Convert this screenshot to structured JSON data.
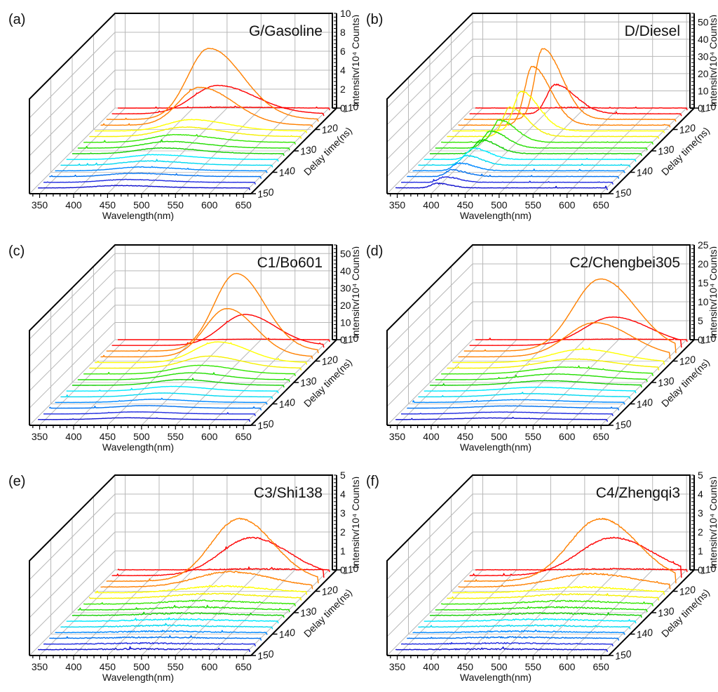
{
  "figure": {
    "description": "Time-resolved fluorescence spectra waterfall plots for six oil samples",
    "trace_colors": [
      "#ff0000",
      "#ff0000",
      "#ff8000",
      "#ff8000",
      "#ffff00",
      "#f5f000",
      "#33e600",
      "#22dd00",
      "#11cc00",
      "#00eaff",
      "#00d8f0",
      "#0088ff",
      "#0070ee",
      "#1f2ae0",
      "#1010cc"
    ],
    "grid_color": "#b8b8b8",
    "axis_color": "#000000"
  },
  "chart_data": [
    {
      "type": "line",
      "panel_label": "(a)",
      "title": "G/Gasoline",
      "xlabel": "Wavelength(nm)",
      "ylabel_depth": "Delay time(ns)",
      "zlabel": "Intensity(10⁴ Counts)",
      "x_ticks": [
        "350",
        "400",
        "450",
        "500",
        "550",
        "600",
        "650"
      ],
      "xlim": [
        335,
        655
      ],
      "depth_ticks": [
        "110",
        "120",
        "130",
        "140",
        "150"
      ],
      "depth_range": [
        110,
        150
      ],
      "z_ticks": [
        "0",
        "2",
        "4",
        "6",
        "8",
        "10"
      ],
      "zlim": [
        0,
        10
      ],
      "noise": 0.05,
      "series": [
        {
          "delay_ns": 110.0,
          "peak_nm": 500,
          "peak_value": 0.1,
          "width_nm": 60,
          "skew": 1.4
        },
        {
          "delay_ns": 112.7,
          "peak_nm": 495,
          "peak_value": 3.0,
          "width_nm": 55,
          "skew": 1.5
        },
        {
          "delay_ns": 115.3,
          "peak_nm": 490,
          "peak_value": 7.5,
          "width_nm": 50,
          "skew": 1.6
        },
        {
          "delay_ns": 118.0,
          "peak_nm": 485,
          "peak_value": 4.0,
          "width_nm": 50,
          "skew": 1.6
        },
        {
          "delay_ns": 120.7,
          "peak_nm": 480,
          "peak_value": 1.2,
          "width_nm": 55,
          "skew": 1.6
        },
        {
          "delay_ns": 123.3,
          "peak_nm": 478,
          "peak_value": 1.0,
          "width_nm": 55,
          "skew": 1.6
        },
        {
          "delay_ns": 126.0,
          "peak_nm": 475,
          "peak_value": 0.8,
          "width_nm": 55,
          "skew": 1.6
        },
        {
          "delay_ns": 128.7,
          "peak_nm": 472,
          "peak_value": 0.7,
          "width_nm": 55,
          "skew": 1.6
        },
        {
          "delay_ns": 131.3,
          "peak_nm": 470,
          "peak_value": 0.6,
          "width_nm": 55,
          "skew": 1.6
        },
        {
          "delay_ns": 134.0,
          "peak_nm": 468,
          "peak_value": 0.5,
          "width_nm": 55,
          "skew": 1.6
        },
        {
          "delay_ns": 136.7,
          "peak_nm": 466,
          "peak_value": 0.45,
          "width_nm": 55,
          "skew": 1.6
        },
        {
          "delay_ns": 139.3,
          "peak_nm": 464,
          "peak_value": 0.4,
          "width_nm": 55,
          "skew": 1.6
        },
        {
          "delay_ns": 142.0,
          "peak_nm": 462,
          "peak_value": 0.35,
          "width_nm": 55,
          "skew": 1.6
        },
        {
          "delay_ns": 144.7,
          "peak_nm": 460,
          "peak_value": 0.3,
          "width_nm": 55,
          "skew": 1.6
        },
        {
          "delay_ns": 147.3,
          "peak_nm": 458,
          "peak_value": 0.25,
          "width_nm": 55,
          "skew": 1.6
        }
      ]
    },
    {
      "type": "line",
      "panel_label": "(b)",
      "title": "D/Diesel",
      "xlabel": "Wavelength(nm)",
      "ylabel_depth": "Delay time(ns)",
      "zlabel": "Intensity(10⁴ Counts)",
      "x_ticks": [
        "350",
        "400",
        "450",
        "500",
        "550",
        "600",
        "650"
      ],
      "xlim": [
        335,
        655
      ],
      "depth_ticks": [
        "110",
        "120",
        "130",
        "140",
        "150"
      ],
      "depth_range": [
        110,
        150
      ],
      "z_ticks": [
        "0",
        "10",
        "20",
        "30",
        "40",
        "50"
      ],
      "zlim": [
        0,
        55
      ],
      "noise": 0.12,
      "series": [
        {
          "delay_ns": 110.0,
          "peak_nm": 470,
          "peak_value": 0.3,
          "width_nm": 30,
          "skew": 2.2
        },
        {
          "delay_ns": 112.7,
          "peak_nm": 465,
          "peak_value": 17,
          "width_nm": 30,
          "skew": 2.4
        },
        {
          "delay_ns": 115.3,
          "peak_nm": 455,
          "peak_value": 41,
          "width_nm": 28,
          "skew": 2.4
        },
        {
          "delay_ns": 118.0,
          "peak_nm": 448,
          "peak_value": 34,
          "width_nm": 27,
          "skew": 2.4
        },
        {
          "delay_ns": 120.7,
          "peak_nm": 440,
          "peak_value": 23,
          "width_nm": 26,
          "skew": 2.4
        },
        {
          "delay_ns": 123.3,
          "peak_nm": 432,
          "peak_value": 17,
          "width_nm": 25,
          "skew": 2.4
        },
        {
          "delay_ns": 126.0,
          "peak_nm": 425,
          "peak_value": 13,
          "width_nm": 24,
          "skew": 2.4
        },
        {
          "delay_ns": 128.7,
          "peak_nm": 420,
          "peak_value": 10,
          "width_nm": 24,
          "skew": 2.4
        },
        {
          "delay_ns": 131.3,
          "peak_nm": 415,
          "peak_value": 8,
          "width_nm": 23,
          "skew": 2.4
        },
        {
          "delay_ns": 134.0,
          "peak_nm": 412,
          "peak_value": 6.5,
          "width_nm": 23,
          "skew": 2.4
        },
        {
          "delay_ns": 136.7,
          "peak_nm": 410,
          "peak_value": 5.5,
          "width_nm": 22,
          "skew": 2.4
        },
        {
          "delay_ns": 139.3,
          "peak_nm": 407,
          "peak_value": 4.5,
          "width_nm": 22,
          "skew": 2.4
        },
        {
          "delay_ns": 142.0,
          "peak_nm": 405,
          "peak_value": 3.8,
          "width_nm": 22,
          "skew": 2.4
        },
        {
          "delay_ns": 144.7,
          "peak_nm": 403,
          "peak_value": 3.2,
          "width_nm": 21,
          "skew": 2.4
        },
        {
          "delay_ns": 147.3,
          "peak_nm": 400,
          "peak_value": 2.6,
          "width_nm": 21,
          "skew": 2.4
        }
      ]
    },
    {
      "type": "line",
      "panel_label": "(c)",
      "title": "C1/Bo601",
      "xlabel": "Wavelength(nm)",
      "ylabel_depth": "Delay time(ns)",
      "zlabel": "Intensity(10⁴ Counts)",
      "x_ticks": [
        "350",
        "400",
        "450",
        "500",
        "550",
        "600",
        "650"
      ],
      "xlim": [
        335,
        655
      ],
      "depth_ticks": [
        "110",
        "120",
        "130",
        "140",
        "150"
      ],
      "depth_range": [
        110,
        150
      ],
      "z_ticks": [
        "0",
        "10",
        "20",
        "30",
        "40",
        "50"
      ],
      "zlim": [
        0,
        55
      ],
      "noise": 0.02,
      "series": [
        {
          "delay_ns": 110.0,
          "peak_nm": 535,
          "peak_value": 0.3,
          "width_nm": 45,
          "skew": 1.3
        },
        {
          "delay_ns": 112.7,
          "peak_nm": 535,
          "peak_value": 18,
          "width_nm": 45,
          "skew": 1.3
        },
        {
          "delay_ns": 115.3,
          "peak_nm": 530,
          "peak_value": 45,
          "width_nm": 42,
          "skew": 1.3
        },
        {
          "delay_ns": 118.0,
          "peak_nm": 525,
          "peak_value": 28,
          "width_nm": 42,
          "skew": 1.3
        },
        {
          "delay_ns": 120.7,
          "peak_nm": 520,
          "peak_value": 12,
          "width_nm": 45,
          "skew": 1.3
        },
        {
          "delay_ns": 123.3,
          "peak_nm": 515,
          "peak_value": 7,
          "width_nm": 47,
          "skew": 1.3
        },
        {
          "delay_ns": 126.0,
          "peak_nm": 510,
          "peak_value": 5,
          "width_nm": 48,
          "skew": 1.3
        },
        {
          "delay_ns": 128.7,
          "peak_nm": 505,
          "peak_value": 4,
          "width_nm": 48,
          "skew": 1.3
        },
        {
          "delay_ns": 131.3,
          "peak_nm": 500,
          "peak_value": 3.3,
          "width_nm": 48,
          "skew": 1.3
        },
        {
          "delay_ns": 134.0,
          "peak_nm": 495,
          "peak_value": 2.7,
          "width_nm": 48,
          "skew": 1.3
        },
        {
          "delay_ns": 136.7,
          "peak_nm": 490,
          "peak_value": 2.2,
          "width_nm": 48,
          "skew": 1.3
        },
        {
          "delay_ns": 139.3,
          "peak_nm": 485,
          "peak_value": 1.8,
          "width_nm": 48,
          "skew": 1.3
        },
        {
          "delay_ns": 142.0,
          "peak_nm": 480,
          "peak_value": 1.5,
          "width_nm": 48,
          "skew": 1.3
        },
        {
          "delay_ns": 144.7,
          "peak_nm": 475,
          "peak_value": 1.2,
          "width_nm": 48,
          "skew": 1.3
        },
        {
          "delay_ns": 147.3,
          "peak_nm": 470,
          "peak_value": 1.0,
          "width_nm": 48,
          "skew": 1.3
        }
      ]
    },
    {
      "type": "line",
      "panel_label": "(d)",
      "title": "C2/Chengbei305",
      "xlabel": "Wavelength(nm)",
      "ylabel_depth": "Delay time(ns)",
      "zlabel": "Intensity(10⁴ Counts)",
      "x_ticks": [
        "350",
        "400",
        "450",
        "500",
        "550",
        "600",
        "650"
      ],
      "xlim": [
        335,
        655
      ],
      "depth_ticks": [
        "110",
        "120",
        "130",
        "140",
        "150"
      ],
      "depth_range": [
        110,
        150
      ],
      "z_ticks": [
        "0",
        "5",
        "10",
        "15",
        "20",
        "25"
      ],
      "zlim": [
        0,
        25
      ],
      "noise": 0.03,
      "series": [
        {
          "delay_ns": 110.0,
          "peak_nm": 550,
          "peak_value": 0.15,
          "width_nm": 55,
          "skew": 1.3
        },
        {
          "delay_ns": 112.7,
          "peak_nm": 550,
          "peak_value": 7.5,
          "width_nm": 55,
          "skew": 1.3
        },
        {
          "delay_ns": 115.3,
          "peak_nm": 540,
          "peak_value": 19,
          "width_nm": 52,
          "skew": 1.3
        },
        {
          "delay_ns": 118.0,
          "peak_nm": 540,
          "peak_value": 9,
          "width_nm": 54,
          "skew": 1.3
        },
        {
          "delay_ns": 120.7,
          "peak_nm": 530,
          "peak_value": 3.5,
          "width_nm": 58,
          "skew": 1.3
        },
        {
          "delay_ns": 123.3,
          "peak_nm": 525,
          "peak_value": 2.4,
          "width_nm": 60,
          "skew": 1.3
        },
        {
          "delay_ns": 126.0,
          "peak_nm": 520,
          "peak_value": 1.8,
          "width_nm": 60,
          "skew": 1.3
        },
        {
          "delay_ns": 128.7,
          "peak_nm": 515,
          "peak_value": 1.5,
          "width_nm": 60,
          "skew": 1.3
        },
        {
          "delay_ns": 131.3,
          "peak_nm": 510,
          "peak_value": 1.2,
          "width_nm": 60,
          "skew": 1.3
        },
        {
          "delay_ns": 134.0,
          "peak_nm": 505,
          "peak_value": 1.0,
          "width_nm": 60,
          "skew": 1.3
        },
        {
          "delay_ns": 136.7,
          "peak_nm": 500,
          "peak_value": 0.85,
          "width_nm": 60,
          "skew": 1.3
        },
        {
          "delay_ns": 139.3,
          "peak_nm": 495,
          "peak_value": 0.7,
          "width_nm": 60,
          "skew": 1.3
        },
        {
          "delay_ns": 142.0,
          "peak_nm": 490,
          "peak_value": 0.6,
          "width_nm": 60,
          "skew": 1.3
        },
        {
          "delay_ns": 144.7,
          "peak_nm": 485,
          "peak_value": 0.5,
          "width_nm": 60,
          "skew": 1.3
        },
        {
          "delay_ns": 147.3,
          "peak_nm": 480,
          "peak_value": 0.4,
          "width_nm": 60,
          "skew": 1.3
        }
      ]
    },
    {
      "type": "line",
      "panel_label": "(e)",
      "title": "C3/Shi138",
      "xlabel": "Wavelength(nm)",
      "ylabel_depth": "Delay time(ns)",
      "zlabel": "Intensity(10⁴ Counts)",
      "x_ticks": [
        "350",
        "400",
        "450",
        "500",
        "550",
        "600",
        "650"
      ],
      "xlim": [
        335,
        655
      ],
      "depth_ticks": [
        "110",
        "120",
        "130",
        "140",
        "150"
      ],
      "depth_range": [
        110,
        150
      ],
      "z_ticks": [
        "0",
        "1",
        "2",
        "3",
        "4",
        "5"
      ],
      "zlim": [
        0,
        5
      ],
      "noise": 0.12,
      "series": [
        {
          "delay_ns": 110.0,
          "peak_nm": 540,
          "peak_value": 0.05,
          "width_nm": 55,
          "skew": 1.2
        },
        {
          "delay_ns": 112.7,
          "peak_nm": 545,
          "peak_value": 2.0,
          "width_nm": 55,
          "skew": 1.2
        },
        {
          "delay_ns": 115.3,
          "peak_nm": 535,
          "peak_value": 3.3,
          "width_nm": 50,
          "skew": 1.2
        },
        {
          "delay_ns": 118.0,
          "peak_nm": 530,
          "peak_value": 0.8,
          "width_nm": 60,
          "skew": 1.2
        },
        {
          "delay_ns": 120.7,
          "peak_nm": 525,
          "peak_value": 0.35,
          "width_nm": 65,
          "skew": 1.2
        },
        {
          "delay_ns": 123.3,
          "peak_nm": 520,
          "peak_value": 0.25,
          "width_nm": 65,
          "skew": 1.2
        },
        {
          "delay_ns": 126.0,
          "peak_nm": 515,
          "peak_value": 0.18,
          "width_nm": 65,
          "skew": 1.2
        },
        {
          "delay_ns": 128.7,
          "peak_nm": 510,
          "peak_value": 0.15,
          "width_nm": 65,
          "skew": 1.2
        },
        {
          "delay_ns": 131.3,
          "peak_nm": 505,
          "peak_value": 0.12,
          "width_nm": 65,
          "skew": 1.2
        },
        {
          "delay_ns": 134.0,
          "peak_nm": 500,
          "peak_value": 0.1,
          "width_nm": 65,
          "skew": 1.2
        },
        {
          "delay_ns": 136.7,
          "peak_nm": 495,
          "peak_value": 0.08,
          "width_nm": 65,
          "skew": 1.2
        },
        {
          "delay_ns": 139.3,
          "peak_nm": 490,
          "peak_value": 0.07,
          "width_nm": 65,
          "skew": 1.2
        },
        {
          "delay_ns": 142.0,
          "peak_nm": 485,
          "peak_value": 0.06,
          "width_nm": 65,
          "skew": 1.2
        },
        {
          "delay_ns": 144.7,
          "peak_nm": 480,
          "peak_value": 0.05,
          "width_nm": 65,
          "skew": 1.2
        },
        {
          "delay_ns": 147.3,
          "peak_nm": 475,
          "peak_value": 0.04,
          "width_nm": 65,
          "skew": 1.2
        }
      ]
    },
    {
      "type": "line",
      "panel_label": "(f)",
      "title": "C4/Zhengqi3",
      "xlabel": "Wavelength(nm)",
      "ylabel_depth": "Delay time(ns)",
      "zlabel": "Intensity(10⁴ Counts)",
      "x_ticks": [
        "350",
        "400",
        "450",
        "500",
        "550",
        "600",
        "650"
      ],
      "xlim": [
        335,
        655
      ],
      "depth_ticks": [
        "110",
        "120",
        "130",
        "140",
        "150"
      ],
      "depth_range": [
        110,
        150
      ],
      "z_ticks": [
        "0",
        "1",
        "2",
        "3",
        "4",
        "5"
      ],
      "zlim": [
        0,
        5
      ],
      "noise": 0.12,
      "series": [
        {
          "delay_ns": 110.0,
          "peak_nm": 545,
          "peak_value": 0.05,
          "width_nm": 60,
          "skew": 1.2
        },
        {
          "delay_ns": 112.7,
          "peak_nm": 550,
          "peak_value": 2.0,
          "width_nm": 60,
          "skew": 1.2
        },
        {
          "delay_ns": 115.3,
          "peak_nm": 540,
          "peak_value": 3.3,
          "width_nm": 55,
          "skew": 1.2
        },
        {
          "delay_ns": 118.0,
          "peak_nm": 535,
          "peak_value": 0.7,
          "width_nm": 65,
          "skew": 1.2
        },
        {
          "delay_ns": 120.7,
          "peak_nm": 530,
          "peak_value": 0.3,
          "width_nm": 68,
          "skew": 1.2
        },
        {
          "delay_ns": 123.3,
          "peak_nm": 525,
          "peak_value": 0.22,
          "width_nm": 68,
          "skew": 1.2
        },
        {
          "delay_ns": 126.0,
          "peak_nm": 520,
          "peak_value": 0.17,
          "width_nm": 68,
          "skew": 1.2
        },
        {
          "delay_ns": 128.7,
          "peak_nm": 515,
          "peak_value": 0.14,
          "width_nm": 68,
          "skew": 1.2
        },
        {
          "delay_ns": 131.3,
          "peak_nm": 510,
          "peak_value": 0.12,
          "width_nm": 68,
          "skew": 1.2
        },
        {
          "delay_ns": 134.0,
          "peak_nm": 505,
          "peak_value": 0.1,
          "width_nm": 68,
          "skew": 1.2
        },
        {
          "delay_ns": 136.7,
          "peak_nm": 500,
          "peak_value": 0.08,
          "width_nm": 68,
          "skew": 1.2
        },
        {
          "delay_ns": 139.3,
          "peak_nm": 495,
          "peak_value": 0.07,
          "width_nm": 68,
          "skew": 1.2
        },
        {
          "delay_ns": 142.0,
          "peak_nm": 490,
          "peak_value": 0.06,
          "width_nm": 68,
          "skew": 1.2
        },
        {
          "delay_ns": 144.7,
          "peak_nm": 485,
          "peak_value": 0.05,
          "width_nm": 68,
          "skew": 1.2
        },
        {
          "delay_ns": 147.3,
          "peak_nm": 480,
          "peak_value": 0.04,
          "width_nm": 68,
          "skew": 1.2
        }
      ]
    }
  ]
}
